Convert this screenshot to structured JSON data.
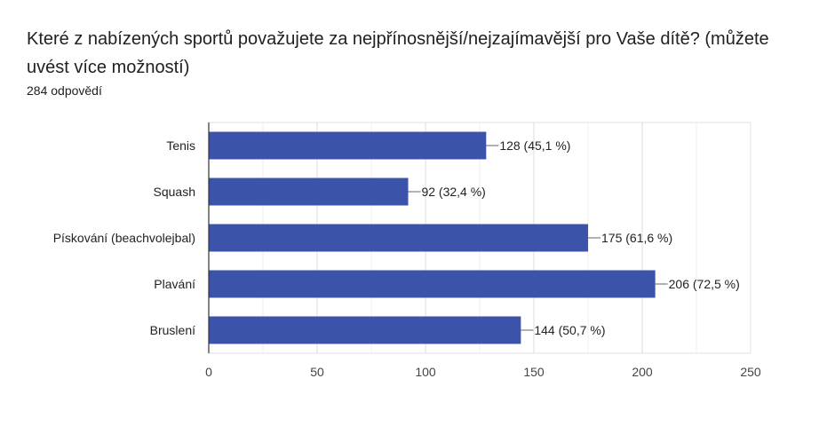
{
  "question": {
    "title": "Které z nabízených sportů považujete za nejpřínosnější/nejzajímavější pro Vaše dítě? (můžete uvést více možností)",
    "response_count": "284 odpovědí"
  },
  "chart_data": {
    "type": "bar",
    "orientation": "horizontal",
    "categories": [
      "Tenis",
      "Squash",
      "Pískování (beachvolejbal)",
      "Plavání",
      "Bruslení"
    ],
    "values": [
      128,
      92,
      175,
      206,
      144
    ],
    "data_labels": [
      "128 (45,1 %)",
      "92 (32,4 %)",
      "175 (61,6 %)",
      "206 (72,5 %)",
      "144 (50,7 %)"
    ],
    "xlim": [
      0,
      250
    ],
    "xticks": [
      0,
      50,
      100,
      150,
      200,
      250
    ],
    "bar_color": "#3b53a8",
    "grid": true
  }
}
